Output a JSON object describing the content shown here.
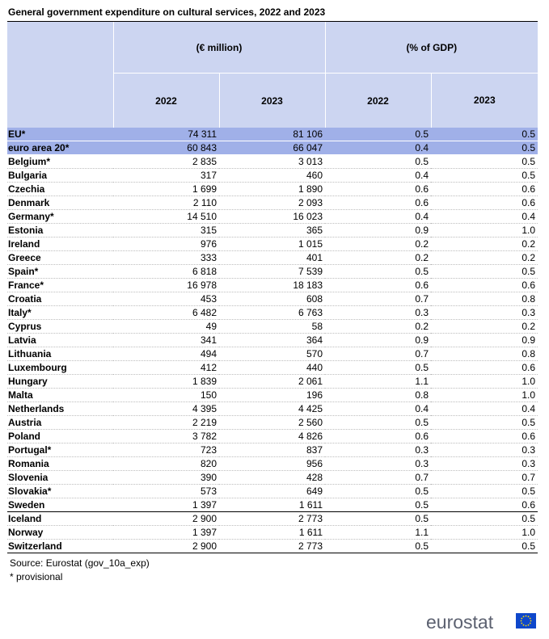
{
  "title": "General government expenditure on cultural services, 2022 and 2023",
  "header": {
    "group1": "(€ million)",
    "group2": "(% of GDP)",
    "years": [
      "2022",
      "2023",
      "2022",
      "2023"
    ]
  },
  "rows": [
    {
      "name": "EU*",
      "m2022": "74 311",
      "m2023": "81 106",
      "p2022": "0.5",
      "p2023": "0.5"
    },
    {
      "name": "euro area 20*",
      "m2022": "60 843",
      "m2023": "66 047",
      "p2022": "0.4",
      "p2023": "0.5"
    },
    {
      "name": "Belgium*",
      "m2022": "2 835",
      "m2023": "3 013",
      "p2022": "0.5",
      "p2023": "0.5"
    },
    {
      "name": "Bulgaria",
      "m2022": "317",
      "m2023": "460",
      "p2022": "0.4",
      "p2023": "0.5"
    },
    {
      "name": "Czechia",
      "m2022": "1 699",
      "m2023": "1 890",
      "p2022": "0.6",
      "p2023": "0.6"
    },
    {
      "name": "Denmark",
      "m2022": "2 110",
      "m2023": "2 093",
      "p2022": "0.6",
      "p2023": "0.6"
    },
    {
      "name": "Germany*",
      "m2022": "14 510",
      "m2023": "16 023",
      "p2022": "0.4",
      "p2023": "0.4"
    },
    {
      "name": "Estonia",
      "m2022": "315",
      "m2023": "365",
      "p2022": "0.9",
      "p2023": "1.0"
    },
    {
      "name": "Ireland",
      "m2022": "976",
      "m2023": "1 015",
      "p2022": "0.2",
      "p2023": "0.2"
    },
    {
      "name": "Greece",
      "m2022": "333",
      "m2023": "401",
      "p2022": "0.2",
      "p2023": "0.2"
    },
    {
      "name": "Spain*",
      "m2022": "6 818",
      "m2023": "7 539",
      "p2022": "0.5",
      "p2023": "0.5"
    },
    {
      "name": "France*",
      "m2022": "16 978",
      "m2023": "18 183",
      "p2022": "0.6",
      "p2023": "0.6"
    },
    {
      "name": "Croatia",
      "m2022": "453",
      "m2023": "608",
      "p2022": "0.7",
      "p2023": "0.8"
    },
    {
      "name": "Italy*",
      "m2022": "6 482",
      "m2023": "6 763",
      "p2022": "0.3",
      "p2023": "0.3"
    },
    {
      "name": "Cyprus",
      "m2022": "49",
      "m2023": "58",
      "p2022": "0.2",
      "p2023": "0.2"
    },
    {
      "name": "Latvia",
      "m2022": "341",
      "m2023": "364",
      "p2022": "0.9",
      "p2023": "0.9"
    },
    {
      "name": "Lithuania",
      "m2022": "494",
      "m2023": "570",
      "p2022": "0.7",
      "p2023": "0.8"
    },
    {
      "name": "Luxembourg",
      "m2022": "412",
      "m2023": "440",
      "p2022": "0.5",
      "p2023": "0.6"
    },
    {
      "name": "Hungary",
      "m2022": "1 839",
      "m2023": "2 061",
      "p2022": "1.1",
      "p2023": "1.0"
    },
    {
      "name": "Malta",
      "m2022": "150",
      "m2023": "196",
      "p2022": "0.8",
      "p2023": "1.0"
    },
    {
      "name": "Netherlands",
      "m2022": "4 395",
      "m2023": "4 425",
      "p2022": "0.4",
      "p2023": "0.4"
    },
    {
      "name": "Austria",
      "m2022": "2 219",
      "m2023": "2 560",
      "p2022": "0.5",
      "p2023": "0.5"
    },
    {
      "name": "Poland",
      "m2022": "3 782",
      "m2023": "4 826",
      "p2022": "0.6",
      "p2023": "0.6"
    },
    {
      "name": "Portugal*",
      "m2022": "723",
      "m2023": "837",
      "p2022": "0.3",
      "p2023": "0.3"
    },
    {
      "name": "Romania",
      "m2022": "820",
      "m2023": "956",
      "p2022": "0.3",
      "p2023": "0.3"
    },
    {
      "name": "Slovenia",
      "m2022": "390",
      "m2023": "428",
      "p2022": "0.7",
      "p2023": "0.7"
    },
    {
      "name": "Slovakia*",
      "m2022": "573",
      "m2023": "649",
      "p2022": "0.5",
      "p2023": "0.5"
    },
    {
      "name": "Sweden",
      "m2022": "1 397",
      "m2023": "1 611",
      "p2022": "0.5",
      "p2023": "0.6"
    },
    {
      "name": "Iceland",
      "m2022": "2 900",
      "m2023": "2 773",
      "p2022": "0.5",
      "p2023": "0.5"
    },
    {
      "name": "Norway",
      "m2022": "1 397",
      "m2023": "1 611",
      "p2022": "1.1",
      "p2023": "1.0"
    },
    {
      "name": "Switzerland",
      "m2022": "2 900",
      "m2023": "2 773",
      "p2022": "0.5",
      "p2023": "0.5"
    }
  ],
  "source": "Source: Eurostat (gov_10a_exp)",
  "note": "* provisional",
  "brand": "eurostat",
  "colors": {
    "header_bg": "#ccd5f1",
    "aggregate_bg": "#a0b0e8",
    "brand_text": "#5c6170",
    "flag": "#0e47cb",
    "stars": "#ffdd00"
  }
}
